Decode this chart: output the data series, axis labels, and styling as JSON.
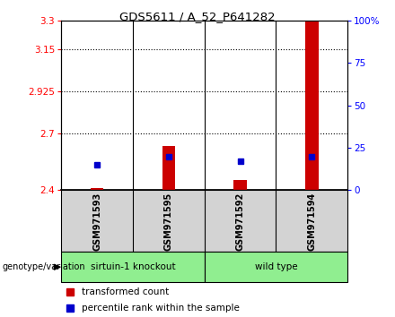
{
  "title": "GDS5611 / A_52_P641282",
  "samples": [
    "GSM971593",
    "GSM971595",
    "GSM971592",
    "GSM971594"
  ],
  "red_values": [
    2.41,
    2.635,
    2.455,
    3.295
  ],
  "blue_percentiles": [
    15.0,
    19.5,
    17.0,
    20.0
  ],
  "ylim_left": [
    2.4,
    3.3
  ],
  "ylim_right": [
    0,
    100
  ],
  "left_ticks": [
    2.4,
    2.7,
    2.925,
    3.15,
    3.3
  ],
  "right_ticks": [
    0,
    25,
    50,
    75,
    100
  ],
  "left_tick_labels": [
    "2.4",
    "2.7",
    "2.925",
    "3.15",
    "3.3"
  ],
  "right_tick_labels": [
    "0",
    "25",
    "50",
    "75",
    "100%"
  ],
  "dotted_lines": [
    2.7,
    2.925,
    3.15
  ],
  "bar_color": "#cc0000",
  "dot_color": "#0000cc",
  "group_label_ko": "sirtuin-1 knockout",
  "group_label_wt": "wild type",
  "group_color_ko": "#90EE90",
  "group_color_wt": "#90EE90",
  "sample_bg": "#d3d3d3",
  "genotype_label": "genotype/variation",
  "legend_red": "transformed count",
  "legend_blue": "percentile rank within the sample",
  "bar_width": 0.18
}
